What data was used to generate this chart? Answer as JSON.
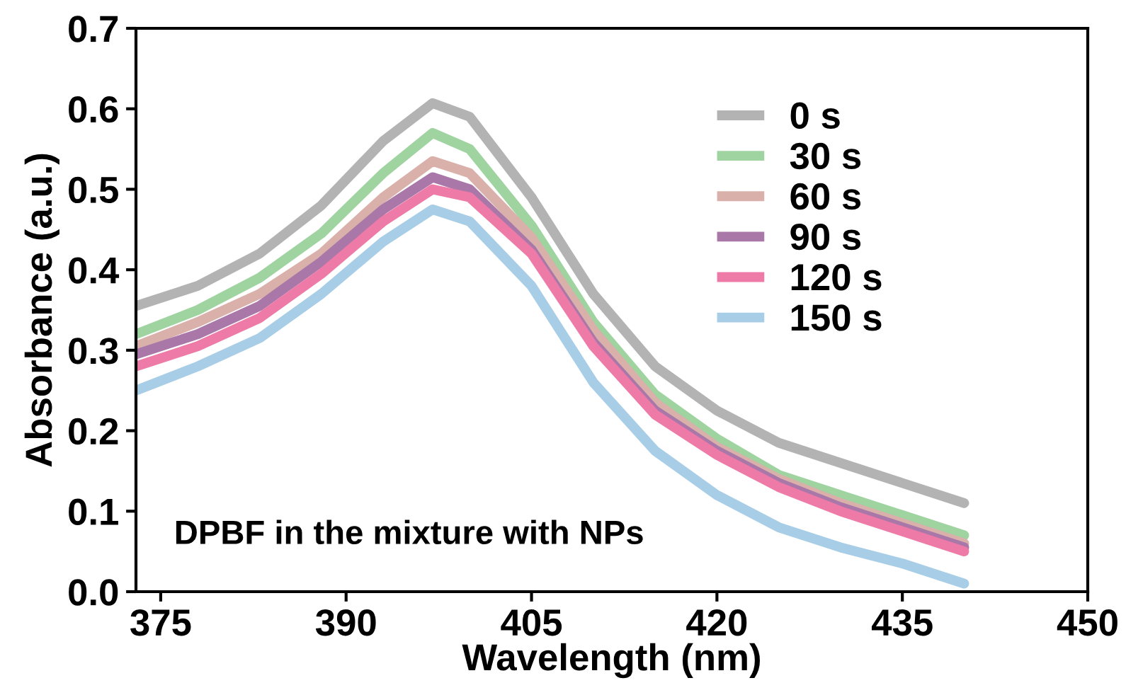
{
  "chart_data": {
    "type": "line",
    "xlabel": "Wavelength (nm)",
    "ylabel": "Absorbance (a.u.)",
    "x": [
      373,
      378,
      383,
      388,
      393,
      397,
      400,
      405,
      410,
      415,
      420,
      425,
      430,
      435,
      440
    ],
    "series": [
      {
        "name": "0 s",
        "color": "#b3b3b3",
        "values": [
          0.355,
          0.38,
          0.42,
          0.48,
          0.56,
          0.607,
          0.59,
          0.49,
          0.37,
          0.28,
          0.225,
          0.185,
          0.16,
          0.135,
          0.11
        ]
      },
      {
        "name": "30 s",
        "color": "#9fd3a0",
        "values": [
          0.32,
          0.35,
          0.39,
          0.445,
          0.52,
          0.57,
          0.55,
          0.455,
          0.335,
          0.245,
          0.19,
          0.145,
          0.12,
          0.095,
          0.07
        ]
      },
      {
        "name": "60 s",
        "color": "#d9b0aa",
        "values": [
          0.305,
          0.335,
          0.37,
          0.42,
          0.49,
          0.535,
          0.52,
          0.44,
          0.325,
          0.235,
          0.18,
          0.14,
          0.11,
          0.085,
          0.06
        ]
      },
      {
        "name": "90 s",
        "color": "#a977a8",
        "values": [
          0.295,
          0.32,
          0.355,
          0.41,
          0.475,
          0.515,
          0.5,
          0.425,
          0.31,
          0.225,
          0.175,
          0.135,
          0.105,
          0.08,
          0.055
        ]
      },
      {
        "name": "120 s",
        "color": "#ee7ba7",
        "values": [
          0.28,
          0.305,
          0.34,
          0.395,
          0.46,
          0.5,
          0.49,
          0.42,
          0.305,
          0.22,
          0.17,
          0.13,
          0.1,
          0.075,
          0.05
        ]
      },
      {
        "name": "150 s",
        "color": "#a8cde6",
        "values": [
          0.25,
          0.28,
          0.315,
          0.37,
          0.435,
          0.475,
          0.46,
          0.38,
          0.26,
          0.175,
          0.12,
          0.08,
          0.055,
          0.035,
          0.01
        ]
      }
    ],
    "xlim": [
      373,
      450
    ],
    "xticks": [
      375,
      390,
      405,
      420,
      435,
      450
    ],
    "ylim": [
      0,
      0.7
    ],
    "yticks": [
      {
        "value": 0,
        "label": "0.0"
      },
      0.1,
      0.2,
      0.3,
      0.4,
      0.5,
      0.6,
      0.7
    ],
    "annotations": [
      "DPBF in the mixture with NPs"
    ],
    "legend": "top right",
    "grid": false,
    "marker": "none",
    "line_style": "solid"
  }
}
